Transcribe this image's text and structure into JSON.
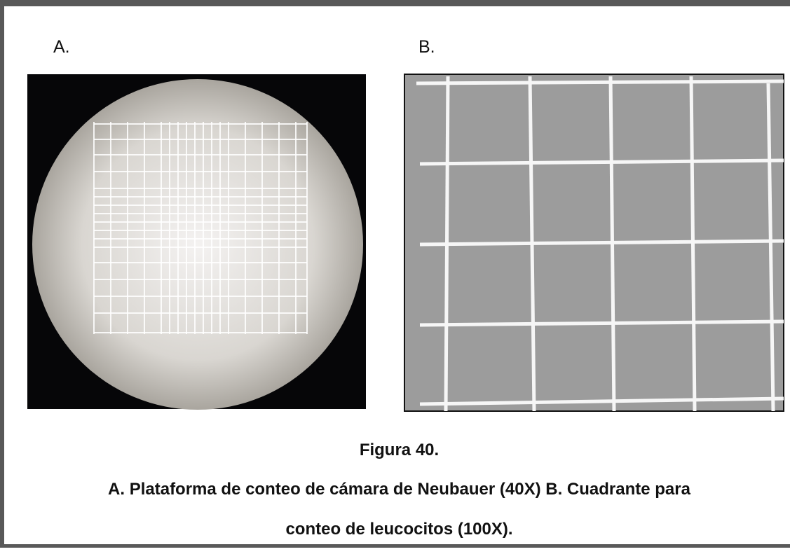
{
  "labels": {
    "a": "A.",
    "b": "B."
  },
  "caption": {
    "title": "Figura 40.",
    "lines": [
      "A. Plataforma de conteo de cámara de Neubauer (40X) B. Cuadrante para",
      "conteo de leucocitos (100X)."
    ]
  }
}
